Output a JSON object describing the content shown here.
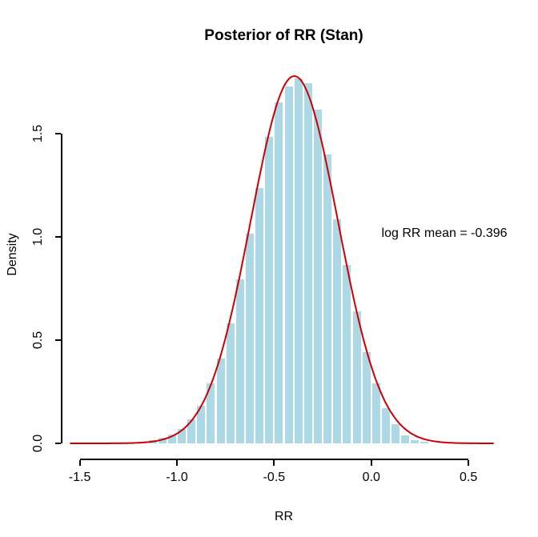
{
  "title": "Posterior of RR (Stan)",
  "annotation": "log RR mean = -0.396",
  "x_axis": {
    "label": "RR",
    "tick_values": [
      -1.5,
      -1.0,
      -0.5,
      0.0,
      0.5
    ],
    "tick_labels": [
      "-1.5",
      "-1.0",
      "-0.5",
      "0.0",
      "0.5"
    ]
  },
  "y_axis": {
    "label": "Density",
    "tick_values": [
      0.0,
      0.5,
      1.0,
      1.5
    ],
    "tick_labels": [
      "0.0",
      "0.5",
      "1.0",
      "1.5"
    ]
  },
  "colors": {
    "background": "#ffffff",
    "bar_fill": "#ADD8E6",
    "bar_border": "#ffffff",
    "curve": "#CC0000",
    "axis": "#000000",
    "text": "#000000"
  },
  "chart_data": {
    "type": "bar",
    "subtype": "histogram_with_density_curve",
    "title": "Posterior of RR (Stan)",
    "xlabel": "RR",
    "ylabel": "Density",
    "xlim": [
      -1.593,
      0.693
    ],
    "ylim": [
      -0.0736,
      1.841
    ],
    "x_ticks": [
      -1.5,
      -1.0,
      -0.5,
      0.0,
      0.5
    ],
    "y_ticks": [
      0.0,
      0.5,
      1.0,
      1.5
    ],
    "grid": false,
    "legend": "none",
    "bin_start": -1.25,
    "bin_width": 0.05,
    "bin_edges": [
      -1.25,
      -1.2,
      -1.15,
      -1.1,
      -1.05,
      -1.0,
      -0.95,
      -0.9,
      -0.85,
      -0.8,
      -0.75,
      -0.7,
      -0.65,
      -0.6,
      -0.55,
      -0.5,
      -0.45,
      -0.4,
      -0.35,
      -0.3,
      -0.25,
      -0.2,
      -0.15,
      -0.1,
      -0.05,
      0.0,
      0.05,
      0.1,
      0.15,
      0.2,
      0.25,
      0.3,
      0.35
    ],
    "densities": [
      0.005,
      0.01,
      0.02,
      0.03,
      0.048,
      0.072,
      0.12,
      0.185,
      0.295,
      0.415,
      0.585,
      0.8,
      1.02,
      1.24,
      1.487,
      1.657,
      1.731,
      1.77,
      1.75,
      1.622,
      1.404,
      1.09,
      0.87,
      0.644,
      0.446,
      0.293,
      0.174,
      0.098,
      0.044,
      0.019,
      0.012,
      0.006
    ],
    "curve": {
      "shape": "normal_density",
      "mean": -0.396,
      "sd": 0.224,
      "peak_density": 1.779,
      "x_from": -1.55,
      "x_to": 0.63
    },
    "annotation": {
      "text": "log RR mean = -0.396",
      "x": 0.376,
      "y": 1.015
    }
  }
}
